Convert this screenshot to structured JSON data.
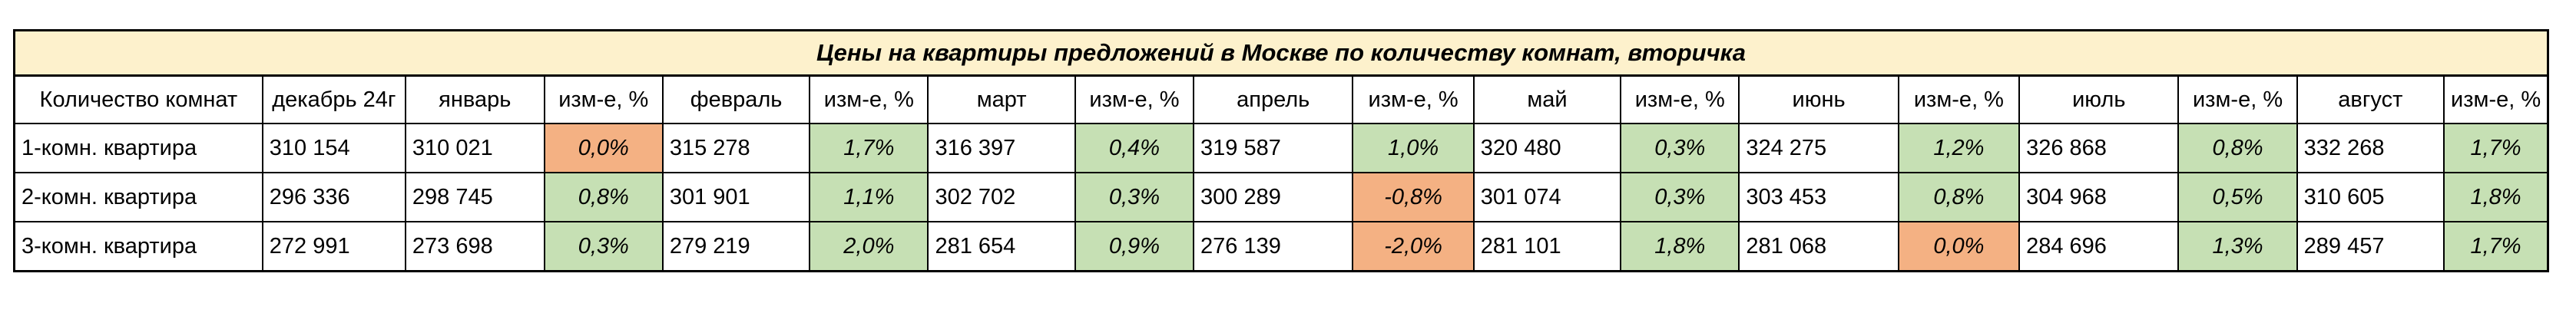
{
  "table": {
    "title": "Цены на квартиры предложений в Москве по количеству комнат, вторичка",
    "headers": [
      "Количество комнат",
      "декабрь 24г",
      "январь",
      "изм-е, %",
      "февраль",
      "изм-е, %",
      "март",
      "изм-е, %",
      "апрель",
      "изм-е, %",
      "май",
      "изм-е, %",
      "июнь",
      "изм-е, %",
      "июль",
      "изм-е, %",
      "август",
      "изм-е, %"
    ],
    "rows": [
      {
        "label": "1-комн. квартира",
        "cells": [
          "310 154",
          "310 021",
          "0,0%",
          "315 278",
          "1,7%",
          "316 397",
          "0,4%",
          "319 587",
          "1,0%",
          "320 480",
          "0,3%",
          "324 275",
          "1,2%",
          "326 868",
          "0,8%",
          "332 268",
          "1,7%"
        ]
      },
      {
        "label": "2-комн. квартира",
        "cells": [
          "296 336",
          "298 745",
          "0,8%",
          "301 901",
          "1,1%",
          "302 702",
          "0,3%",
          "300 289",
          "-0,8%",
          "301 074",
          "0,3%",
          "303 453",
          "0,8%",
          "304 968",
          "0,5%",
          "310 605",
          "1,8%"
        ]
      },
      {
        "label": "3-комн. квартира",
        "cells": [
          "272 991",
          "273 698",
          "0,3%",
          "279 219",
          "2,0%",
          "281 654",
          "0,9%",
          "276 139",
          "-2,0%",
          "281 101",
          "1,8%",
          "281 068",
          "0,0%",
          "284 696",
          "1,3%",
          "289 457",
          "1,7%"
        ]
      }
    ]
  },
  "colors": {
    "title_background": "#fdf1cc",
    "positive_change": "#c6e0b4",
    "negative_or_zero_change": "#f4b183",
    "border": "#000000"
  }
}
